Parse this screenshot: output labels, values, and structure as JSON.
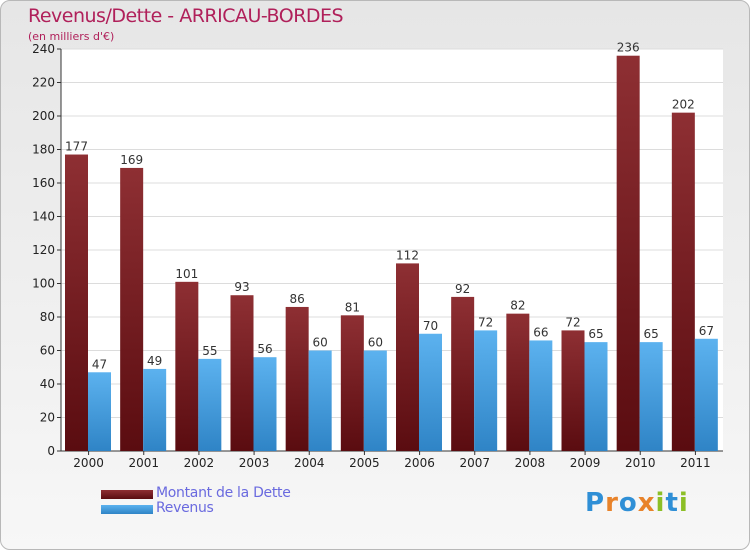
{
  "title": "Revenus/Dette - ARRICAU-BORDES",
  "subtitle": "(en milliers d'€)",
  "logo": {
    "text": "Proxiti",
    "letters": [
      "P",
      "r",
      "o",
      "x",
      "i",
      "t",
      "i"
    ],
    "colors": [
      "#2f8fd6",
      "#e8832a",
      "#2f8fd6",
      "#e8832a",
      "#8cbf26",
      "#2f8fd6",
      "#8cbf26"
    ]
  },
  "colors": {
    "debt": "#7a1e22",
    "debt_light": "#8c2a2e",
    "revenue": "#4fa6e6",
    "revenue_dark": "#2f86c8",
    "legend_text": "#6a6adf",
    "title": "#b0205a"
  },
  "chart_data": {
    "type": "bar",
    "title": "Revenus/Dette - ARRICAU-BORDES",
    "ylabel": "(en milliers d'€)",
    "xlabel": "",
    "ylim": [
      0,
      240
    ],
    "ytick_step": 20,
    "grid": true,
    "categories": [
      "2000",
      "2001",
      "2002",
      "2003",
      "2004",
      "2005",
      "2006",
      "2007",
      "2008",
      "2009",
      "2010",
      "2011"
    ],
    "series": [
      {
        "name": "Montant de la Dette",
        "values": [
          177,
          169,
          101,
          93,
          86,
          81,
          112,
          92,
          82,
          72,
          236,
          202
        ]
      },
      {
        "name": "Revenus",
        "values": [
          47,
          49,
          55,
          56,
          60,
          60,
          70,
          72,
          66,
          65,
          65,
          67
        ]
      }
    ],
    "legend_position": "bottom-left"
  }
}
